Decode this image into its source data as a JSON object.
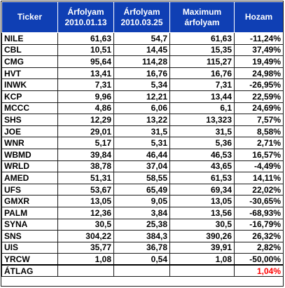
{
  "table": {
    "headers": {
      "ticker": "Ticker",
      "price_start_line1": "Árfolyam",
      "price_start_line2": "2010.01.13",
      "price_end_line1": "Árfolyam",
      "price_end_line2": "2010.03.25",
      "max_line1": "Maximum",
      "max_line2": "árfolyam",
      "yield": "Hozam"
    },
    "rows": [
      {
        "ticker": "NILE",
        "start": "61,63",
        "end": "54,7",
        "max": "61,63",
        "yield": "-11,24%"
      },
      {
        "ticker": "CBL",
        "start": "10,51",
        "end": "14,45",
        "max": "15,35",
        "yield": "37,49%"
      },
      {
        "ticker": "CMG",
        "start": "95,64",
        "end": "114,28",
        "max": "115,27",
        "yield": "19,49%"
      },
      {
        "ticker": "HVT",
        "start": "13,41",
        "end": "16,76",
        "max": "16,76",
        "yield": "24,98%"
      },
      {
        "ticker": "INWK",
        "start": "7,31",
        "end": "5,34",
        "max": "7,31",
        "yield": "-26,95%"
      },
      {
        "ticker": "KCP",
        "start": "9,96",
        "end": "12,21",
        "max": "13,44",
        "yield": "22,59%"
      },
      {
        "ticker": "MCCC",
        "start": "4,86",
        "end": "6,06",
        "max": "6,1",
        "yield": "24,69%"
      },
      {
        "ticker": "SHS",
        "start": "12,29",
        "end": "13,22",
        "max": "13,323",
        "yield": "7,57%"
      },
      {
        "ticker": "JOE",
        "start": "29,01",
        "end": "31,5",
        "max": "31,5",
        "yield": "8,58%"
      },
      {
        "ticker": "WNR",
        "start": "5,17",
        "end": "5,31",
        "max": "5,36",
        "yield": "2,71%"
      },
      {
        "ticker": "WBMD",
        "start": "39,84",
        "end": "46,44",
        "max": "46,53",
        "yield": "16,57%"
      },
      {
        "ticker": "WRLD",
        "start": "38,78",
        "end": "37,04",
        "max": "43,65",
        "yield": "-4,49%"
      },
      {
        "ticker": "AMED",
        "start": "51,31",
        "end": "58,55",
        "max": "61,53",
        "yield": "14,11%"
      },
      {
        "ticker": "UFS",
        "start": "53,67",
        "end": "65,49",
        "max": "69,34",
        "yield": "22,02%"
      },
      {
        "ticker": "GMXR",
        "start": "13,05",
        "end": "9,05",
        "max": "13,05",
        "yield": "-30,65%"
      },
      {
        "ticker": "PALM",
        "start": "12,36",
        "end": "3,84",
        "max": "13,56",
        "yield": "-68,93%"
      },
      {
        "ticker": "SYNA",
        "start": "30,5",
        "end": "25,38",
        "max": "30,5",
        "yield": "-16,79%"
      },
      {
        "ticker": "SNS",
        "start": "304,22",
        "end": "384,3",
        "max": "390,26",
        "yield": "26,32%"
      },
      {
        "ticker": "UIS",
        "start": "35,77",
        "end": "36,78",
        "max": "39,91",
        "yield": "2,82%"
      },
      {
        "ticker": "YRCW",
        "start": "1,08",
        "end": "0,54",
        "max": "1,08",
        "yield": "-50,00%"
      }
    ],
    "footer": {
      "label": "ÁTLAG",
      "yield": "1,04%"
    }
  },
  "colors": {
    "header_bg": "#0f3fb4",
    "header_text": "#ffffff",
    "average_value": "#ff0000"
  }
}
